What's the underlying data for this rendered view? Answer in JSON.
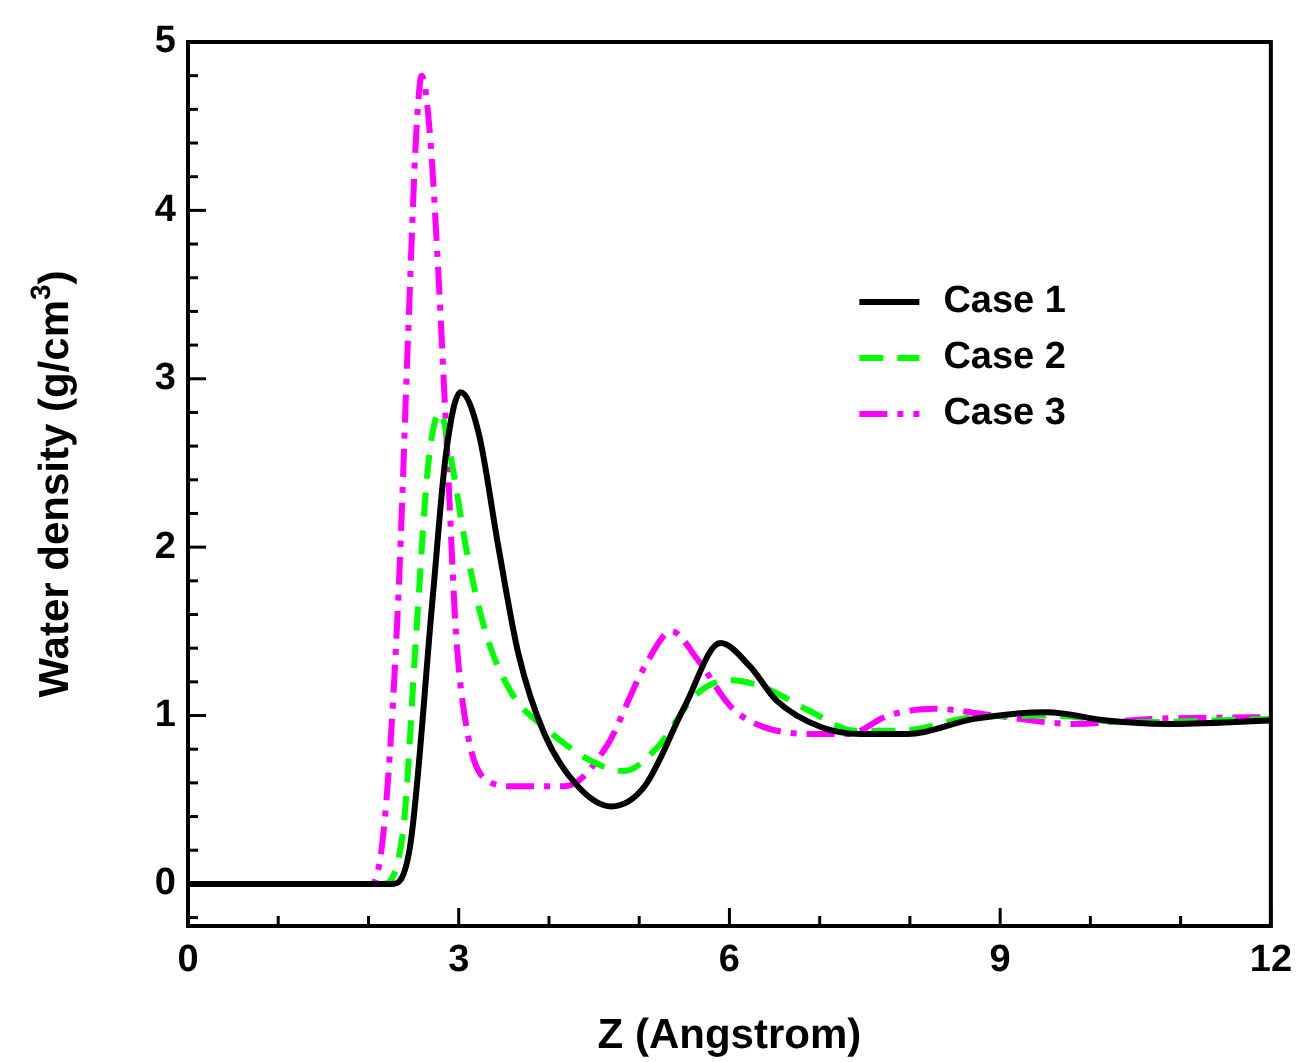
{
  "chart_data": {
    "type": "line",
    "xlabel": "Z (Angstrom)",
    "ylabel": "Water density (g/cm$^{3}$)",
    "xlim": [
      0,
      12
    ],
    "ylim": [
      -0.25,
      5
    ],
    "xticks": [
      0,
      {
        "value": 1,
        "label": null
      },
      {
        "value": 2,
        "label": null
      },
      3,
      {
        "value": 4,
        "label": null
      },
      {
        "value": 5,
        "label": null
      },
      6,
      {
        "value": 7,
        "label": null
      },
      {
        "value": 8,
        "label": null
      },
      9,
      {
        "value": 10,
        "label": null
      },
      {
        "value": 11,
        "label": null
      },
      12
    ],
    "yticks": [
      {
        "value": -0.2,
        "label": null
      },
      0,
      {
        "value": 0.2,
        "label": null
      },
      {
        "value": 0.4,
        "label": null
      },
      {
        "value": 0.6,
        "label": null
      },
      {
        "value": 0.8,
        "label": null
      },
      1,
      {
        "value": 1.2,
        "label": null
      },
      {
        "value": 1.4,
        "label": null
      },
      {
        "value": 1.6,
        "label": null
      },
      {
        "value": 1.8,
        "label": null
      },
      2,
      {
        "value": 2.2,
        "label": null
      },
      {
        "value": 2.4,
        "label": null
      },
      {
        "value": 2.6,
        "label": null
      },
      {
        "value": 2.8,
        "label": null
      },
      3,
      {
        "value": 3.2,
        "label": null
      },
      {
        "value": 3.4,
        "label": null
      },
      {
        "value": 3.6,
        "label": null
      },
      {
        "value": 3.8,
        "label": null
      },
      4,
      {
        "value": 4.2,
        "label": null
      },
      {
        "value": 4.4,
        "label": null
      },
      {
        "value": 4.6,
        "label": null
      },
      {
        "value": 4.8,
        "label": null
      },
      5
    ],
    "legend": "top right",
    "grid": false,
    "marker": "none",
    "series": [
      {
        "name": "Case 1",
        "color": "#000000",
        "line_style": "solid",
        "x": [
          0,
          2.26,
          2.46,
          2.71,
          2.86,
          3.02,
          3.22,
          3.44,
          3.66,
          3.95,
          4.32,
          4.69,
          5.06,
          5.5,
          5.9,
          6.23,
          6.52,
          7.02,
          7.46,
          7.98,
          8.71,
          9.52,
          10.18,
          10.84,
          12
        ],
        "values": [
          0,
          0,
          0.22,
          1.69,
          2.56,
          2.92,
          2.68,
          2.0,
          1.37,
          0.89,
          0.58,
          0.46,
          0.58,
          1.05,
          1.43,
          1.29,
          1.09,
          0.93,
          0.89,
          0.89,
          0.98,
          1.02,
          0.97,
          0.95,
          0.97
        ]
      },
      {
        "name": "Case 2",
        "color": "#00ff00",
        "line_style": "dashed",
        "x": [
          0,
          2.15,
          2.38,
          2.53,
          2.66,
          2.79,
          2.93,
          3.08,
          3.3,
          3.59,
          3.95,
          4.47,
          4.83,
          5.2,
          5.64,
          6.0,
          6.37,
          6.88,
          7.39,
          7.9,
          8.71,
          9.6,
          10.4,
          12
        ],
        "values": [
          0,
          0,
          0.3,
          1.49,
          2.48,
          2.8,
          2.48,
          2.0,
          1.49,
          1.13,
          0.93,
          0.73,
          0.67,
          0.81,
          1.13,
          1.21,
          1.17,
          1.03,
          0.91,
          0.91,
          0.99,
          1.0,
          0.96,
          0.98
        ]
      },
      {
        "name": "Case 3",
        "color": "#ff00ff",
        "line_style": "dashdot",
        "x": [
          0,
          2.04,
          2.18,
          2.33,
          2.44,
          2.53,
          2.59,
          2.68,
          2.77,
          2.88,
          2.97,
          3.1,
          3.3,
          3.59,
          4.18,
          4.63,
          5.06,
          5.36,
          5.65,
          6.02,
          6.39,
          7.02,
          7.32,
          7.76,
          8.27,
          8.93,
          9.82,
          10.69,
          12
        ],
        "values": [
          0,
          0,
          0.38,
          1.69,
          3.27,
          4.46,
          4.8,
          4.46,
          3.67,
          2.48,
          1.49,
          0.89,
          0.62,
          0.58,
          0.58,
          0.81,
          1.29,
          1.5,
          1.33,
          1.05,
          0.93,
          0.89,
          0.89,
          1.0,
          1.04,
          1.0,
          0.95,
          0.98,
          0.99
        ]
      }
    ]
  }
}
